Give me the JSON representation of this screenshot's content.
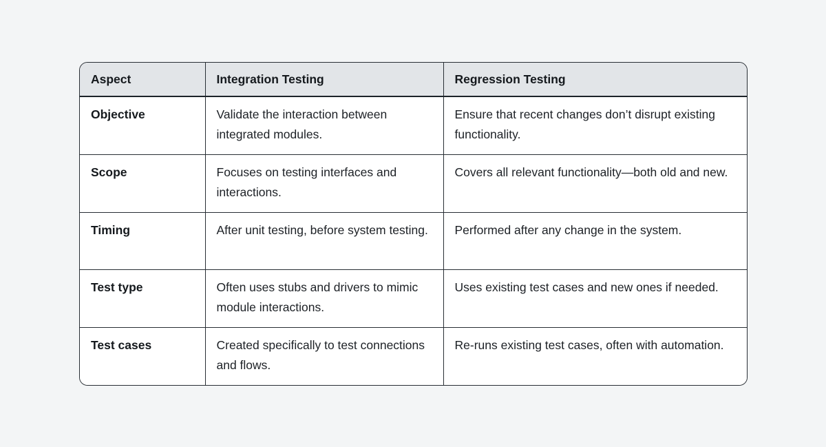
{
  "page": {
    "background_color": "#f3f5f6",
    "table_border_color": "#272d33",
    "header_background_color": "#e2e5e8",
    "cell_background_color": "#ffffff"
  },
  "table": {
    "columns": {
      "aspect": "Aspect",
      "integration": "Integration Testing",
      "regression": "Regression Testing"
    },
    "rows": [
      {
        "aspect": "Objective",
        "integration": "Validate the interaction between integrated modules.",
        "regression": "Ensure that recent changes don’t disrupt existing functionality."
      },
      {
        "aspect": "Scope",
        "integration": "Focuses on testing interfaces and interactions.",
        "regression": "Covers all relevant functionality—both old and new."
      },
      {
        "aspect": "Timing",
        "integration": "After unit testing, before system testing.",
        "regression": "Performed after any change in the system."
      },
      {
        "aspect": "Test type",
        "integration": "Often uses stubs and drivers to mimic module interactions.",
        "regression": "Uses existing test cases and new ones if needed."
      },
      {
        "aspect": "Test cases",
        "integration": "Created specifically to test connections and flows.",
        "regression": "Re-runs existing test cases, often with automation."
      }
    ]
  }
}
